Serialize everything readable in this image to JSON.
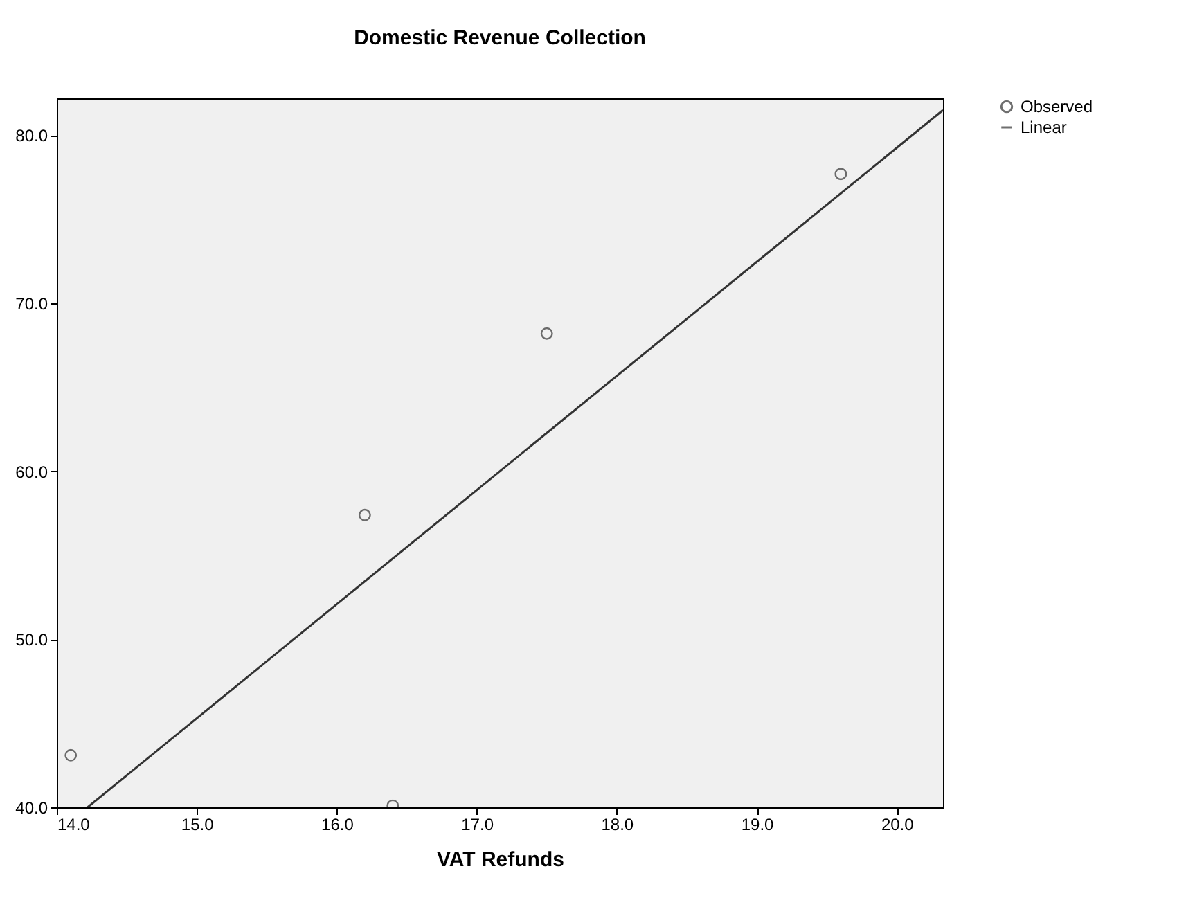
{
  "chart_data": {
    "type": "scatter",
    "title": "Domestic Revenue Collection",
    "xlabel": "VAT Refunds",
    "series": [
      {
        "name": "Observed",
        "marker": "circle",
        "color": "#333333",
        "x": [
          14.1,
          16.2,
          16.4,
          17.5,
          19.6
        ],
        "values": [
          43.1,
          57.4,
          40.1,
          68.2,
          77.7
        ]
      },
      {
        "name": "Linear",
        "type": "line",
        "marker": "none",
        "color": "#333333",
        "x": [
          14.22,
          20.33
        ],
        "values": [
          40.0,
          81.5
        ]
      }
    ],
    "xlim": [
      14.0,
      20.33
    ],
    "ylim": [
      40.0,
      82.2
    ],
    "xticks": [
      {
        "value": 14,
        "label": "14.0"
      },
      {
        "value": 15,
        "label": "15.0"
      },
      {
        "value": 16,
        "label": "16.0"
      },
      {
        "value": 17,
        "label": "17.0"
      },
      {
        "value": 18,
        "label": "18.0"
      },
      {
        "value": 19,
        "label": "19.0"
      },
      {
        "value": 20,
        "label": "20.0"
      }
    ],
    "yticks": [
      {
        "value": 40,
        "label": "40.0"
      },
      {
        "value": 50,
        "label": "50.0"
      },
      {
        "value": 60,
        "label": "60.0"
      },
      {
        "value": 70,
        "label": "70.0"
      },
      {
        "value": 80,
        "label": "80.0"
      }
    ],
    "grid": false,
    "legend": "top right"
  }
}
